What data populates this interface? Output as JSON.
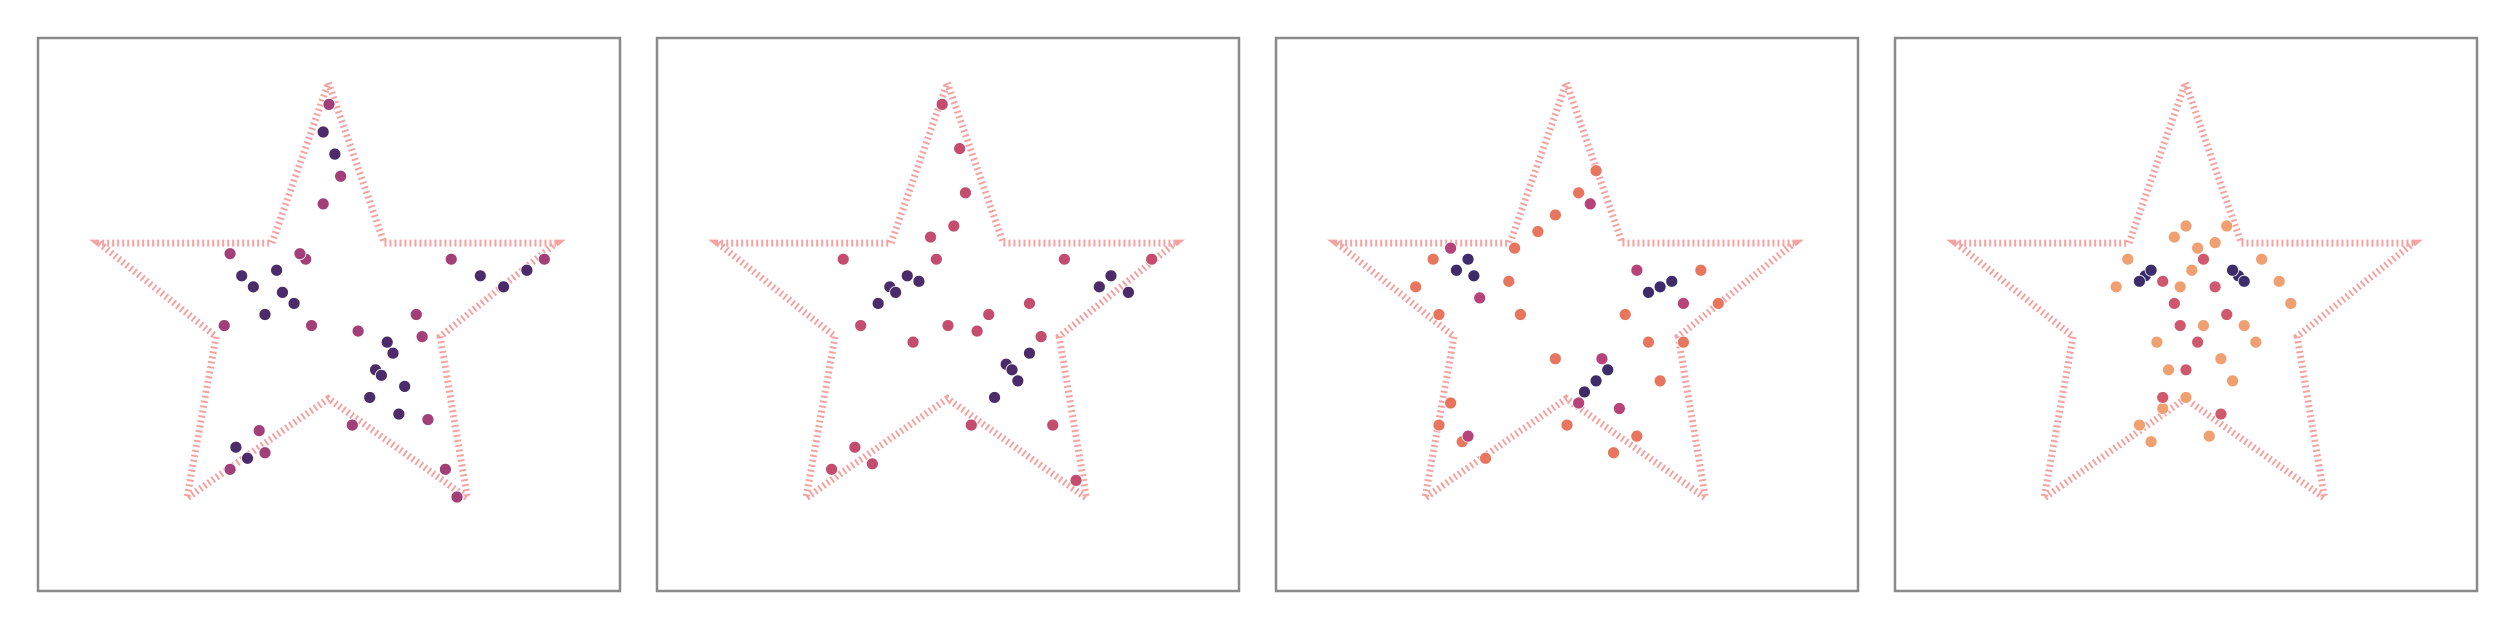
{
  "chart_data": [
    {
      "type": "scatter",
      "xlim": [
        0,
        100
      ],
      "ylim": [
        0,
        100
      ],
      "series": [
        {
          "color": "#4b2b6a",
          "x": [
            37,
            41,
            44,
            39,
            35,
            58,
            61,
            63,
            57,
            60,
            76,
            80,
            84,
            49,
            51,
            34,
            36,
            62,
            42,
            59
          ],
          "values": [
            55,
            58,
            52,
            50,
            57,
            40,
            43,
            37,
            35,
            45,
            57,
            55,
            58,
            83,
            79,
            26,
            24,
            32,
            54,
            39
          ]
        },
        {
          "color": "#a23f78",
          "x": [
            33,
            46,
            47,
            32,
            55,
            66,
            67,
            54,
            71,
            87,
            50,
            52,
            33,
            38,
            70,
            72,
            45,
            65,
            49,
            39
          ],
          "values": [
            61,
            60,
            48,
            48,
            47,
            46,
            31,
            30,
            60,
            60,
            88,
            75,
            22,
            29,
            22,
            17,
            61,
            50,
            70,
            25
          ]
        }
      ]
    },
    {
      "type": "scatter",
      "xlim": [
        0,
        100
      ],
      "ylim": [
        0,
        100
      ],
      "series": [
        {
          "color": "#4b2b6a",
          "x": [
            40,
            43,
            38,
            45,
            60,
            62,
            58,
            64,
            78,
            81,
            76,
            41,
            61
          ],
          "values": [
            55,
            57,
            52,
            56,
            41,
            38,
            35,
            43,
            57,
            54,
            55,
            54,
            40
          ]
        },
        {
          "color": "#c44c6f",
          "x": [
            32,
            35,
            48,
            50,
            55,
            66,
            68,
            54,
            70,
            85,
            49,
            52,
            53,
            34,
            37,
            30,
            72,
            47,
            57,
            51,
            44,
            64
          ],
          "values": [
            60,
            48,
            60,
            48,
            47,
            46,
            30,
            30,
            60,
            60,
            88,
            80,
            72,
            26,
            23,
            22,
            20,
            64,
            50,
            66,
            45,
            52
          ]
        }
      ]
    },
    {
      "type": "scatter",
      "xlim": [
        0,
        100
      ],
      "ylim": [
        0,
        100
      ],
      "series": [
        {
          "color": "#3e2c6a",
          "x": [
            31,
            34,
            33,
            66,
            68,
            64,
            55,
            57,
            53
          ],
          "values": [
            58,
            57,
            60,
            55,
            56,
            54,
            38,
            40,
            36
          ]
        },
        {
          "color": "#e8765e",
          "x": [
            24,
            27,
            40,
            41,
            28,
            73,
            76,
            60,
            62,
            58,
            48,
            50,
            64,
            45,
            28,
            32,
            36,
            52,
            55,
            48,
            70,
            66,
            42,
            30
          ],
          "values": [
            55,
            60,
            56,
            62,
            50,
            58,
            52,
            50,
            28,
            25,
            42,
            30,
            45,
            65,
            30,
            27,
            24,
            72,
            76,
            68,
            45,
            38,
            50,
            34
          ]
        },
        {
          "color": "#b8437a",
          "x": [
            35,
            30,
            62,
            70,
            56,
            52,
            59,
            33,
            54
          ],
          "values": [
            53,
            62,
            58,
            52,
            42,
            34,
            33,
            28,
            70
          ]
        }
      ]
    },
    {
      "type": "scatter",
      "xlim": [
        0,
        100
      ],
      "ylim": [
        0,
        100
      ],
      "series": [
        {
          "color": "#3b2d6b",
          "x": [
            43,
            44,
            42,
            59,
            60,
            58
          ],
          "values": [
            57,
            58,
            56,
            57,
            56,
            58
          ]
        },
        {
          "color": "#f0a070",
          "x": [
            38,
            40,
            48,
            50,
            52,
            55,
            63,
            66,
            68,
            45,
            47,
            53,
            56,
            50,
            58,
            42,
            44,
            46,
            54,
            60,
            62,
            49,
            51,
            57
          ],
          "values": [
            55,
            60,
            64,
            66,
            62,
            63,
            60,
            56,
            52,
            45,
            40,
            48,
            42,
            35,
            38,
            30,
            27,
            33,
            28,
            48,
            45,
            55,
            58,
            66
          ]
        },
        {
          "color": "#d0586e",
          "x": [
            46,
            48,
            55,
            57,
            52,
            50,
            46,
            56,
            53,
            49
          ],
          "values": [
            56,
            52,
            55,
            50,
            45,
            40,
            35,
            32,
            60,
            48
          ]
        }
      ]
    }
  ]
}
